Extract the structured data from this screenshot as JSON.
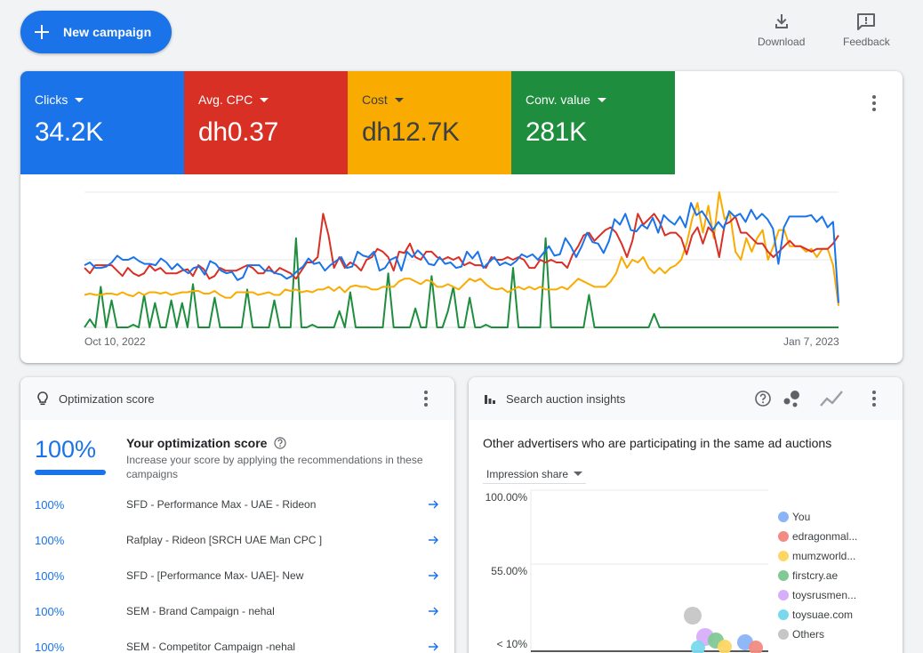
{
  "toolbar": {
    "new_campaign_label": "New campaign",
    "download_label": "Download",
    "feedback_label": "Feedback"
  },
  "metrics": [
    {
      "label": "Clicks",
      "value": "34.2K",
      "color": "#1a73e8",
      "text_color": "#ffffff"
    },
    {
      "label": "Avg. CPC",
      "value": "dh0.37",
      "color": "#d93025",
      "text_color": "#ffffff"
    },
    {
      "label": "Cost",
      "value": "dh12.7K",
      "color": "#f9ab00",
      "text_color": "#3c4043"
    },
    {
      "label": "Conv. value",
      "value": "281K",
      "color": "#1e8e3e",
      "text_color": "#ffffff"
    }
  ],
  "chart_data": {
    "type": "line",
    "x_start_label": "Oct 10, 2022",
    "x_end_label": "Jan 7, 2023",
    "ylim": [
      0,
      100
    ],
    "grid": true,
    "series": [
      {
        "name": "Clicks",
        "color": "#1a73e8",
        "values": [
          46,
          48,
          44,
          44,
          45,
          48,
          53,
          50,
          50,
          52,
          49,
          47,
          47,
          46,
          51,
          48,
          43,
          47,
          43,
          40,
          44,
          45,
          39,
          49,
          47,
          42,
          40,
          41,
          35,
          37,
          46,
          46,
          46,
          42,
          42,
          40,
          39,
          36,
          38,
          42,
          45,
          51,
          47,
          48,
          42,
          46,
          49,
          52,
          44,
          45,
          56,
          53,
          52,
          56,
          42,
          44,
          50,
          52,
          42,
          56,
          52,
          57,
          53,
          47,
          46,
          52,
          47,
          48,
          44,
          45,
          56,
          51,
          56,
          44,
          48,
          52,
          46,
          48,
          46,
          49,
          54,
          52,
          54,
          50,
          55,
          60,
          53,
          54,
          66,
          60,
          52,
          60,
          70,
          63,
          62,
          55,
          64,
          80,
          76,
          84,
          72,
          71,
          76,
          73,
          81,
          70,
          83,
          79,
          76,
          82,
          74,
          92,
          83,
          86,
          80,
          72,
          78,
          73,
          86,
          82,
          84,
          78,
          87,
          80,
          84,
          80,
          73,
          47,
          74,
          82,
          82,
          82,
          82,
          83,
          78,
          82,
          74,
          78,
          18
        ]
      },
      {
        "name": "Avg. CPC",
        "color": "#d93025",
        "values": [
          44,
          40,
          46,
          46,
          46,
          46,
          42,
          38,
          44,
          40,
          38,
          40,
          46,
          42,
          44,
          40,
          40,
          40,
          42,
          43,
          38,
          46,
          43,
          36,
          38,
          44,
          42,
          42,
          42,
          44,
          46,
          44,
          40,
          40,
          45,
          40,
          44,
          42,
          40,
          36,
          42,
          48,
          48,
          52,
          84,
          68,
          44,
          52,
          44,
          48,
          46,
          42,
          50,
          52,
          58,
          56,
          52,
          42,
          56,
          55,
          62,
          52,
          50,
          56,
          56,
          52,
          50,
          52,
          50,
          52,
          46,
          48,
          46,
          46,
          44,
          52,
          50,
          50,
          52,
          50,
          52,
          50,
          44,
          44,
          50,
          48,
          50,
          48,
          48,
          44,
          54,
          60,
          68,
          70,
          64,
          68,
          72,
          74,
          70,
          62,
          52,
          64,
          84,
          76,
          80,
          84,
          78,
          68,
          70,
          70,
          66,
          54,
          68,
          74,
          62,
          74,
          70,
          52,
          76,
          78,
          82,
          70,
          70,
          66,
          62,
          62,
          56,
          52,
          56,
          60,
          64,
          60,
          60,
          58,
          56,
          58,
          58,
          58,
          62,
          68
        ]
      },
      {
        "name": "Cost",
        "color": "#f9ab00",
        "values": [
          24,
          25,
          24,
          24,
          25,
          25,
          24,
          26,
          24,
          23,
          26,
          24,
          26,
          26,
          25,
          26,
          24,
          25,
          26,
          26,
          27,
          27,
          25,
          25,
          27,
          24,
          22,
          22,
          26,
          26,
          26,
          26,
          24,
          25,
          26,
          24,
          24,
          28,
          27,
          28,
          26,
          27,
          26,
          28,
          28,
          30,
          27,
          30,
          26,
          30,
          31,
          30,
          30,
          28,
          28,
          30,
          30,
          30,
          34,
          36,
          36,
          34,
          32,
          35,
          34,
          30,
          30,
          32,
          30,
          28,
          32,
          36,
          34,
          36,
          32,
          29,
          28,
          29,
          26,
          28,
          30,
          28,
          30,
          28,
          30,
          28,
          28,
          28,
          30,
          28,
          32,
          36,
          34,
          32,
          30,
          30,
          30,
          34,
          40,
          52,
          44,
          50,
          48,
          52,
          44,
          40,
          44,
          40,
          44,
          46,
          50,
          62,
          80,
          92,
          70,
          90,
          66,
          100,
          80,
          84,
          56,
          50,
          66,
          56,
          66,
          72,
          50,
          60,
          72,
          72,
          60,
          60,
          60,
          56,
          58,
          52,
          58,
          58,
          46,
          16
        ]
      },
      {
        "name": "Conv. value",
        "color": "#1e8e3e",
        "values": [
          0,
          6,
          0,
          30,
          0,
          20,
          0,
          0,
          0,
          2,
          0,
          24,
          0,
          18,
          0,
          0,
          20,
          0,
          18,
          0,
          32,
          0,
          0,
          0,
          22,
          0,
          0,
          0,
          0,
          0,
          28,
          0,
          0,
          0,
          0,
          20,
          0,
          0,
          0,
          66,
          0,
          0,
          2,
          0,
          0,
          0,
          0,
          12,
          0,
          26,
          0,
          0,
          0,
          0,
          0,
          0,
          40,
          0,
          0,
          0,
          0,
          14,
          0,
          0,
          38,
          0,
          0,
          12,
          30,
          0,
          0,
          22,
          0,
          0,
          2,
          0,
          0,
          0,
          0,
          44,
          0,
          0,
          0,
          0,
          0,
          66,
          0,
          0,
          0,
          0,
          0,
          0,
          0,
          24,
          0,
          0,
          0,
          0,
          0,
          0,
          0,
          0,
          0,
          0,
          0,
          10,
          0,
          0,
          0,
          0,
          0,
          0,
          0,
          0,
          0,
          0,
          0,
          0,
          0,
          0,
          0,
          0,
          0,
          0,
          0,
          0,
          0,
          0,
          0,
          0,
          0,
          0,
          0,
          0,
          0,
          0,
          0,
          0,
          0,
          0
        ]
      }
    ]
  },
  "optimization": {
    "header": "Optimization score",
    "score": "100%",
    "title": "Your optimization score",
    "subtitle": "Increase your score by applying the recommendations in these campaigns",
    "rows": [
      {
        "pct": "100%",
        "name": "SFD - Performance Max - UAE - Rideon"
      },
      {
        "pct": "100%",
        "name": "Rafplay - Rideon [SRCH UAE Man CPC ]"
      },
      {
        "pct": "100%",
        "name": "SFD - [Performance Max- UAE]- New"
      },
      {
        "pct": "100%",
        "name": "SEM - Brand Campaign - nehal"
      },
      {
        "pct": "100%",
        "name": "SEM - Competitor Campaign -nehal"
      }
    ]
  },
  "auction": {
    "header": "Search auction insights",
    "title": "Other advertisers who are participating in the same ad auctions",
    "dropdown": "Impression share",
    "y_labels": [
      "100.00%",
      "55.00%",
      "< 10%"
    ],
    "legend": [
      {
        "name": "You",
        "color": "#8ab4f8"
      },
      {
        "name": "edragonmal...",
        "color": "#f28b82"
      },
      {
        "name": "mumzworld...",
        "color": "#fdd663"
      },
      {
        "name": "firstcry.ae",
        "color": "#81c995"
      },
      {
        "name": "toysrusmen...",
        "color": "#d7aefb"
      },
      {
        "name": "toysuae.com",
        "color": "#78d9ec"
      },
      {
        "name": "Others",
        "color": "#c6c6c6"
      }
    ]
  }
}
